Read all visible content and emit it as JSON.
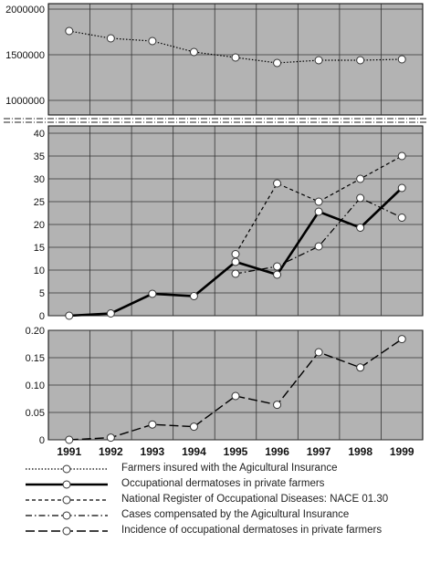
{
  "chart_data": [
    {
      "type": "line",
      "panel": "top",
      "categories": [
        "1991",
        "1992",
        "1993",
        "1994",
        "1995",
        "1996",
        "1997",
        "1998",
        "1999"
      ],
      "ylim": [
        800000,
        2000000
      ],
      "yticks": [
        "2000000",
        "1500000",
        "1000000"
      ],
      "ytick_values": [
        2000000,
        1500000,
        1000000
      ],
      "grid": true,
      "background": "#b3b3b3",
      "series": [
        {
          "name": "Farmers insured with the Agicultural Insurance",
          "style": "dotted",
          "values": [
            1760000,
            1680000,
            1650000,
            1530000,
            1470000,
            1410000,
            1440000,
            1440000,
            1450000
          ]
        }
      ]
    },
    {
      "type": "line",
      "panel": "middle",
      "categories": [
        "1991",
        "1992",
        "1993",
        "1994",
        "1995",
        "1996",
        "1997",
        "1998",
        "1999"
      ],
      "ylim": [
        0,
        42
      ],
      "yticks": [
        "0",
        "5",
        "10",
        "15",
        "20",
        "25",
        "30",
        "35",
        "40"
      ],
      "ytick_values": [
        0,
        5,
        10,
        15,
        20,
        25,
        30,
        35,
        40
      ],
      "grid": true,
      "background": "#b3b3b3",
      "series": [
        {
          "name": "Occupational dermatoses in private farmers",
          "style": "solid",
          "values": [
            0,
            0.5,
            4.8,
            4.3,
            11.8,
            9,
            22.8,
            19.3,
            28
          ]
        },
        {
          "name": "National Register of Occupational Diseases: NACE 01.30",
          "style": "dashed",
          "values": [
            null,
            null,
            null,
            null,
            13.5,
            29,
            25,
            30,
            35
          ]
        },
        {
          "name": "Cases compensated by the Agicultural Insurance",
          "style": "dashdot",
          "values": [
            null,
            null,
            null,
            null,
            9.2,
            10.8,
            15.2,
            25.8,
            21.5
          ]
        }
      ]
    },
    {
      "type": "line",
      "panel": "bottom",
      "categories": [
        "1991",
        "1992",
        "1993",
        "1994",
        "1995",
        "1996",
        "1997",
        "1998",
        "1999"
      ],
      "ylim": [
        0,
        0.2
      ],
      "yticks": [
        "0",
        "0.05",
        "0.10",
        "0.15",
        "0.20"
      ],
      "ytick_values": [
        0,
        0.05,
        0.1,
        0.15,
        0.2
      ],
      "grid": true,
      "background": "#b3b3b3",
      "series": [
        {
          "name": "Incidence of occupational dermatoses in private farmers",
          "style": "longdash",
          "values": [
            0,
            0.004,
            0.028,
            0.024,
            0.08,
            0.064,
            0.16,
            0.132,
            0.184
          ]
        }
      ]
    }
  ],
  "legend": [
    {
      "label": "Farmers insured with the Agicultural Insurance",
      "style": "dotted"
    },
    {
      "label": "Occupational dermatoses in private farmers",
      "style": "solid"
    },
    {
      "label": "National Register of Occupational Diseases: NACE 01.30",
      "style": "dashed"
    },
    {
      "label": "Cases compensated by the Agicultural Insurance",
      "style": "dashdot"
    },
    {
      "label": "Incidence of occupational dermatoses in private farmers",
      "style": "longdash"
    }
  ],
  "colors": {
    "plot_background": "#b3b3b3",
    "line": "#000000",
    "marker_fill": "#ffffff",
    "grid": "#333333"
  }
}
